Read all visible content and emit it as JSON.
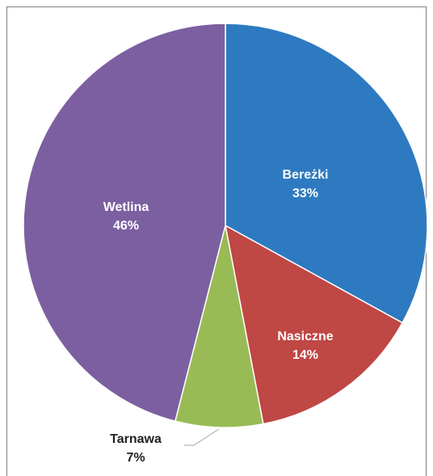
{
  "chart_data": {
    "type": "pie",
    "categories": [
      "Bereżki",
      "Nasiczne",
      "Tarnawa",
      "Wetlina"
    ],
    "values": [
      33,
      14,
      7,
      46
    ],
    "value_labels": [
      "33%",
      "14%",
      "7%",
      "46%"
    ],
    "colors": [
      "#2e7ac0",
      "#bf4744",
      "#99bb55",
      "#7c5fa0"
    ]
  }
}
